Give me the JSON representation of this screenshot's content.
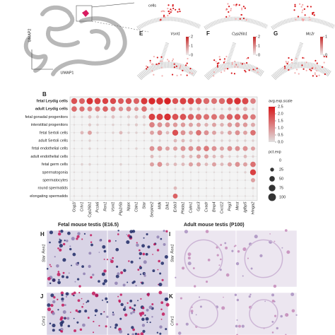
{
  "umap": {
    "x_label": "UMAP1",
    "y_label": "UMAP2",
    "callout": "cells"
  },
  "feature_panels": [
    {
      "label": "E",
      "gene": "Vsnl1",
      "colorbar": [
        2,
        1,
        0
      ]
    },
    {
      "label": "F",
      "gene": "Cyp26b1",
      "colorbar": [
        2,
        1,
        0
      ]
    },
    {
      "label": "G",
      "gene": "Mc2r",
      "colorbar": [
        1,
        0
      ]
    }
  ],
  "dotplot": {
    "label": "B",
    "rows": [
      "fetal Leydig cells",
      "adult Leydig cells",
      "fetal gonadal progenitors",
      "interstitial progenitors",
      "fetal Sertoli cells",
      "adult Sertoli cells",
      "fetal endothelial cells",
      "adult endothelial cells",
      "fetal germ cells",
      "spermatogonia",
      "spermatocytes",
      "round spermatids",
      "elongating spermatids"
    ],
    "genes": [
      "Gsg1l",
      "Crhr1",
      "Cyp26b1",
      "Pcsk6",
      "Ren1",
      "Vsnl1",
      "Ptp2r5b",
      "Nppc",
      "Cbln1",
      "Star",
      "Serpine2",
      "Mdk",
      "Dlk1",
      "Erbb3",
      "Phlda1",
      "Calm1",
      "Gpc3",
      "Cxadr",
      "Bmp4",
      "Cxcl12",
      "Peg3",
      "Mest",
      "Igfbp5",
      "Hmga2"
    ],
    "pct": [
      [
        60,
        55,
        70,
        65,
        60,
        60,
        55,
        60,
        55,
        70,
        75,
        80,
        75,
        60,
        70,
        70,
        65,
        60,
        55,
        60,
        70,
        75,
        70,
        50
      ],
      [
        50,
        45,
        40,
        45,
        50,
        40,
        35,
        40,
        30,
        50,
        20,
        10,
        10,
        10,
        15,
        20,
        20,
        10,
        10,
        10,
        20,
        20,
        30,
        10
      ],
      [
        10,
        10,
        20,
        15,
        10,
        20,
        10,
        15,
        20,
        20,
        70,
        70,
        75,
        65,
        65,
        60,
        60,
        55,
        55,
        50,
        60,
        60,
        55,
        50
      ],
      [
        5,
        5,
        15,
        10,
        5,
        10,
        5,
        10,
        15,
        10,
        50,
        40,
        40,
        35,
        35,
        30,
        30,
        25,
        30,
        25,
        35,
        40,
        35,
        30
      ],
      [
        5,
        20,
        30,
        10,
        5,
        10,
        20,
        10,
        10,
        10,
        30,
        40,
        20,
        60,
        40,
        30,
        50,
        40,
        30,
        20,
        30,
        40,
        30,
        50
      ],
      [
        5,
        5,
        10,
        5,
        5,
        5,
        5,
        5,
        5,
        5,
        10,
        10,
        5,
        20,
        20,
        15,
        10,
        10,
        10,
        10,
        10,
        10,
        10,
        10
      ],
      [
        5,
        5,
        10,
        5,
        5,
        5,
        5,
        5,
        10,
        5,
        40,
        40,
        30,
        30,
        40,
        40,
        40,
        50,
        40,
        30,
        40,
        40,
        40,
        30
      ],
      [
        5,
        5,
        5,
        5,
        5,
        5,
        5,
        5,
        5,
        5,
        20,
        10,
        5,
        10,
        20,
        20,
        30,
        30,
        20,
        20,
        10,
        10,
        20,
        10
      ],
      [
        5,
        10,
        10,
        5,
        5,
        5,
        10,
        5,
        5,
        5,
        30,
        40,
        20,
        20,
        20,
        30,
        30,
        20,
        30,
        20,
        30,
        40,
        30,
        50
      ],
      [
        5,
        5,
        5,
        5,
        5,
        5,
        5,
        5,
        5,
        5,
        5,
        5,
        5,
        5,
        5,
        5,
        5,
        5,
        5,
        5,
        5,
        5,
        10,
        60
      ],
      [
        5,
        5,
        5,
        5,
        5,
        5,
        5,
        5,
        5,
        5,
        5,
        5,
        5,
        5,
        5,
        5,
        5,
        5,
        5,
        5,
        5,
        5,
        5,
        30
      ],
      [
        5,
        5,
        5,
        5,
        5,
        5,
        5,
        5,
        5,
        5,
        5,
        5,
        5,
        20,
        5,
        5,
        5,
        5,
        5,
        5,
        5,
        5,
        5,
        10
      ],
      [
        5,
        5,
        5,
        5,
        5,
        5,
        5,
        5,
        5,
        5,
        5,
        5,
        5,
        40,
        5,
        5,
        5,
        5,
        5,
        5,
        5,
        5,
        5,
        5
      ]
    ],
    "exp": [
      [
        1.8,
        1.6,
        2.2,
        2,
        2,
        1.9,
        1.7,
        1.8,
        1.6,
        2.1,
        2.3,
        2.2,
        2.4,
        1.8,
        2,
        2,
        1.8,
        1.5,
        1.4,
        1.5,
        2,
        2.2,
        1.9,
        1.2
      ],
      [
        1.5,
        1.4,
        1.2,
        1.3,
        1.6,
        1.2,
        1,
        1.1,
        0.9,
        1.4,
        0.4,
        0.2,
        0.2,
        0.2,
        0.3,
        0.4,
        0.4,
        0.2,
        0.2,
        0.2,
        0.4,
        0.4,
        0.6,
        0.2
      ],
      [
        0.2,
        0.2,
        0.4,
        0.3,
        0.2,
        0.4,
        0.2,
        0.3,
        0.4,
        0.4,
        2,
        2,
        2.2,
        1.8,
        1.8,
        1.6,
        1.5,
        1.4,
        1.4,
        1.2,
        1.6,
        1.7,
        1.5,
        1.3
      ],
      [
        0.1,
        0.1,
        0.3,
        0.2,
        0.1,
        0.2,
        0.1,
        0.2,
        0.3,
        0.2,
        1.2,
        1,
        1,
        0.9,
        0.9,
        0.8,
        0.8,
        0.6,
        0.8,
        0.6,
        0.9,
        1,
        0.9,
        0.7
      ],
      [
        0.1,
        0.5,
        0.8,
        0.2,
        0.1,
        0.2,
        0.5,
        0.2,
        0.2,
        0.2,
        0.8,
        1,
        0.5,
        1.8,
        1,
        0.8,
        1.4,
        1,
        0.8,
        0.5,
        0.8,
        1,
        0.8,
        1.4
      ],
      [
        0.1,
        0.1,
        0.2,
        0.1,
        0.1,
        0.1,
        0.1,
        0.1,
        0.1,
        0.1,
        0.2,
        0.2,
        0.1,
        0.5,
        0.5,
        0.3,
        0.2,
        0.2,
        0.2,
        0.2,
        0.2,
        0.2,
        0.2,
        0.2
      ],
      [
        0.1,
        0.1,
        0.2,
        0.1,
        0.1,
        0.1,
        0.1,
        0.1,
        0.2,
        0.1,
        1,
        1,
        0.8,
        0.8,
        1,
        1,
        1.1,
        1.3,
        1,
        0.8,
        1,
        1,
        1,
        0.8
      ],
      [
        0.1,
        0.1,
        0.1,
        0.1,
        0.1,
        0.1,
        0.1,
        0.1,
        0.1,
        0.1,
        0.5,
        0.2,
        0.1,
        0.2,
        0.5,
        0.5,
        0.8,
        0.8,
        0.5,
        0.5,
        0.2,
        0.2,
        0.5,
        0.2
      ],
      [
        0.1,
        0.2,
        0.2,
        0.1,
        0.1,
        0.1,
        0.2,
        0.1,
        0.1,
        0.1,
        0.8,
        1,
        0.5,
        0.5,
        0.5,
        0.8,
        0.8,
        0.5,
        0.8,
        0.5,
        0.8,
        1,
        0.8,
        1.4
      ],
      [
        0.1,
        0.1,
        0.1,
        0.1,
        0.1,
        0.1,
        0.1,
        0.1,
        0.1,
        0.1,
        0.1,
        0.1,
        0.1,
        0.1,
        0.1,
        0.1,
        0.1,
        0.1,
        0.1,
        0.1,
        0.1,
        0.1,
        0.2,
        2
      ],
      [
        0.1,
        0.1,
        0.1,
        0.1,
        0.1,
        0.1,
        0.1,
        0.1,
        0.1,
        0.1,
        0.1,
        0.1,
        0.1,
        0.1,
        0.1,
        0.1,
        0.1,
        0.1,
        0.1,
        0.1,
        0.1,
        0.1,
        0.1,
        0.8
      ],
      [
        0.1,
        0.1,
        0.1,
        0.1,
        0.1,
        0.1,
        0.1,
        0.1,
        0.1,
        0.1,
        0.1,
        0.1,
        0.1,
        0.5,
        0.1,
        0.1,
        0.1,
        0.1,
        0.1,
        0.1,
        0.1,
        0.1,
        0.1,
        0.2
      ],
      [
        0.1,
        0.1,
        0.1,
        0.1,
        0.1,
        0.1,
        0.1,
        0.1,
        0.1,
        0.1,
        0.1,
        0.1,
        0.1,
        1.6,
        0.1,
        0.1,
        0.1,
        0.1,
        0.1,
        0.1,
        0.1,
        0.1,
        0.1,
        0.1
      ]
    ],
    "exp_legend": {
      "title": "avg.exp.scale",
      "ticks": [
        2.5,
        {
          "value": 2,
          "label": "2.0"
        },
        1.5,
        {
          "value": 1,
          "label": "1.0"
        },
        0.5,
        {
          "value": 0,
          "label": "0.0"
        }
      ]
    },
    "pct_legend": {
      "title": "pct.exp",
      "ticks": [
        0,
        25,
        50,
        75,
        100
      ]
    }
  },
  "histology": {
    "fetal_title": "Fetal mouse testis (E16.5)",
    "adult_title": "Adult mouse testis (P100)",
    "panels": [
      {
        "label": "H",
        "stain": [
          "Star",
          "Ren1"
        ]
      },
      {
        "label": "I",
        "stain": [
          "Star",
          "Ren1"
        ]
      },
      {
        "label": "J",
        "stain": [
          "Crhr1"
        ]
      },
      {
        "label": "K",
        "stain": [
          "Crhr1"
        ]
      }
    ]
  }
}
